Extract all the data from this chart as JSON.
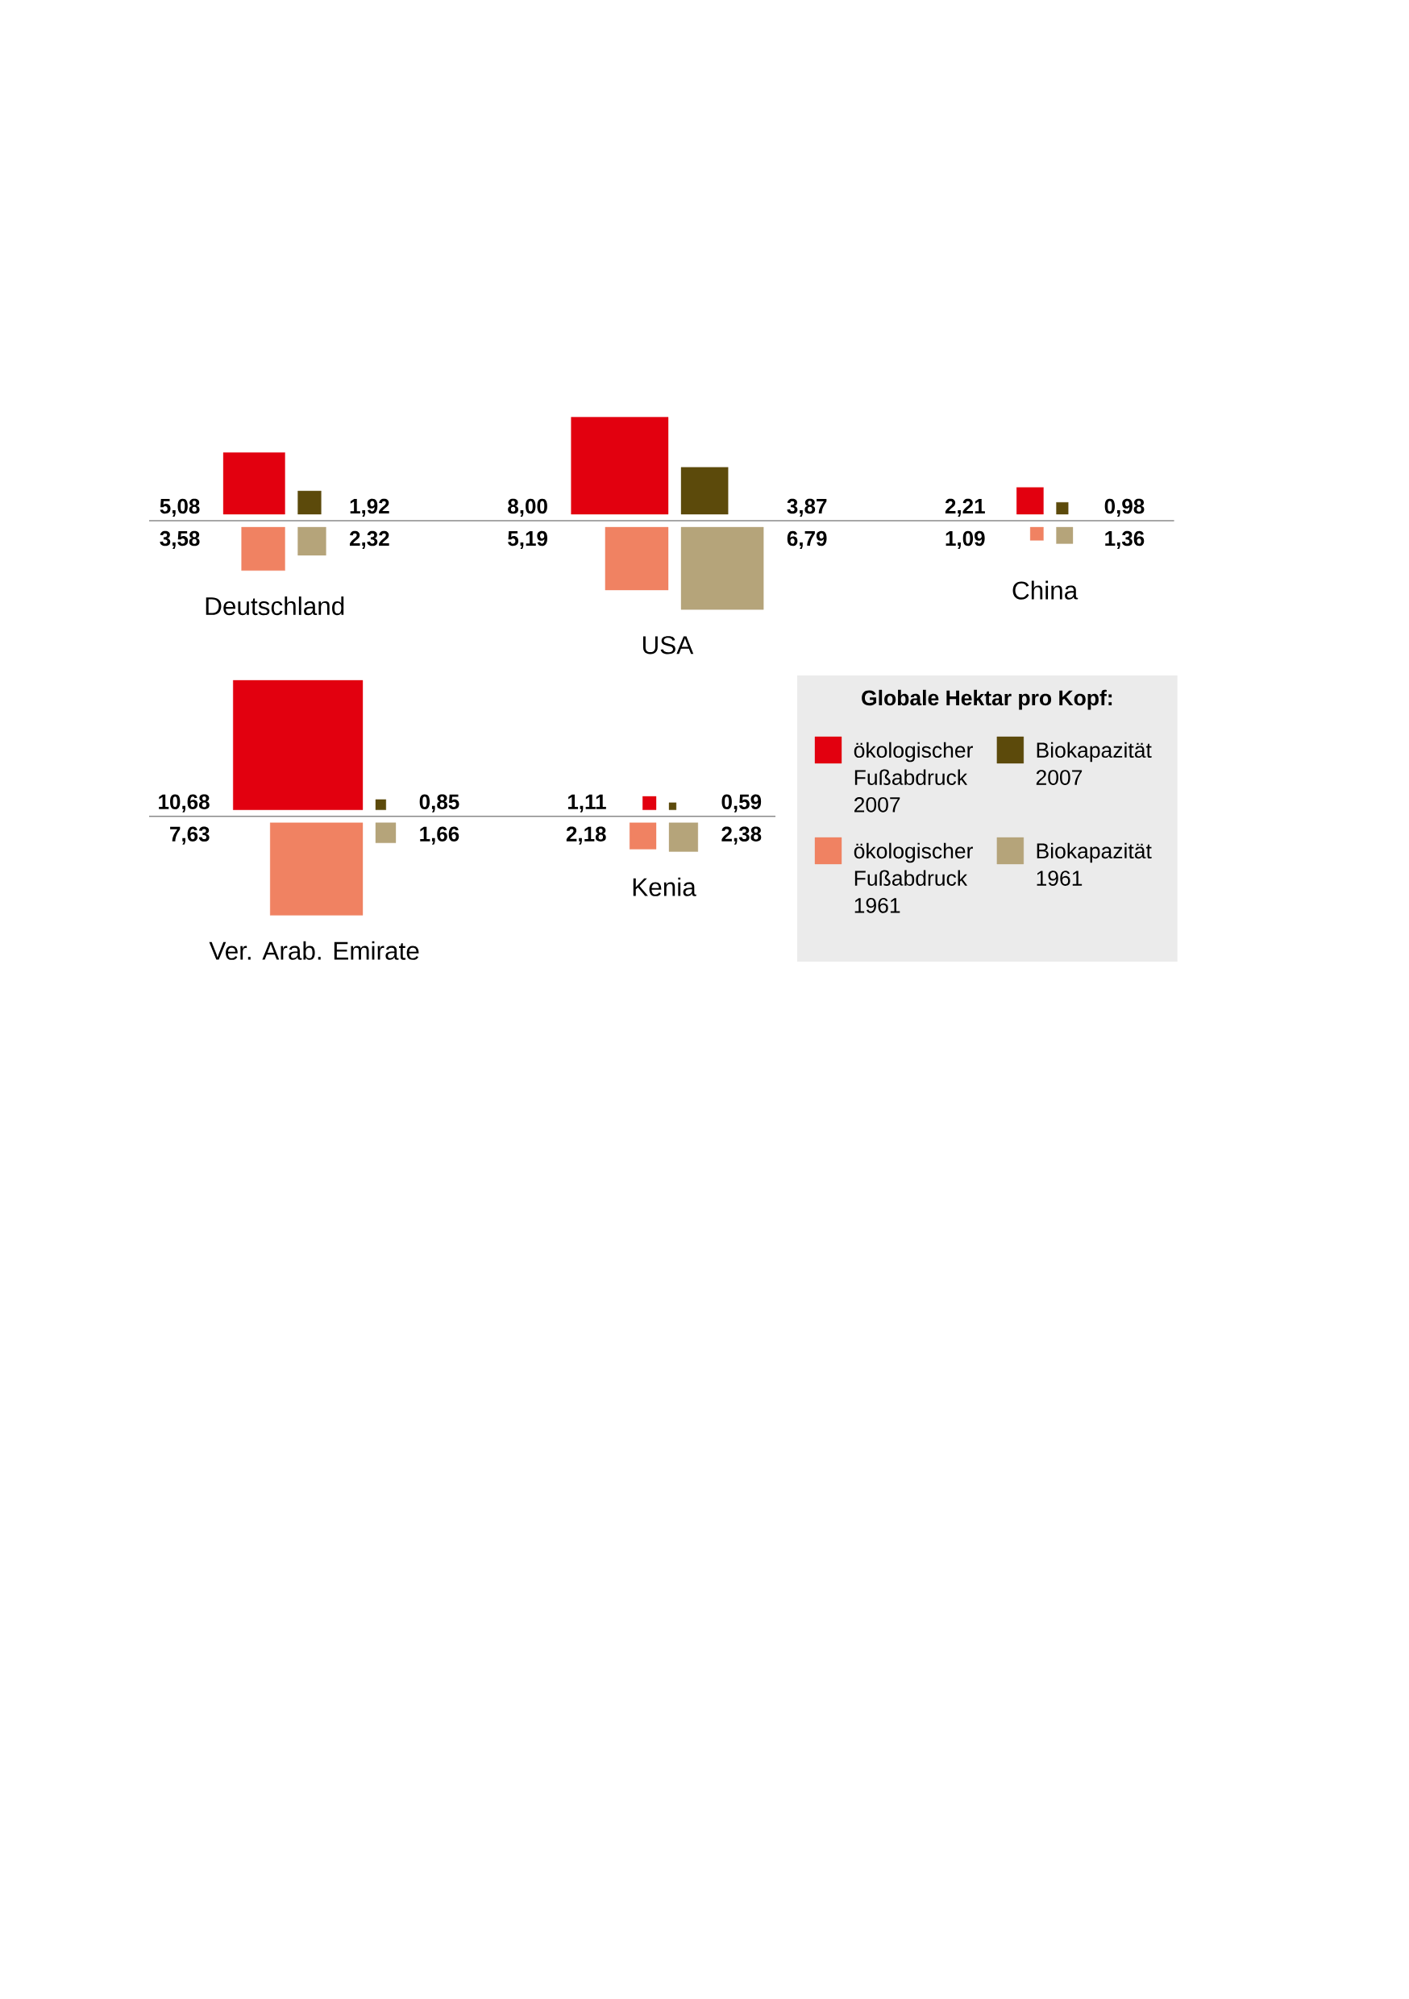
{
  "chart_data": {
    "type": "other",
    "legend_title": "Globale Hektar pro Kopf:",
    "legend": "bottom right",
    "categories": [
      "Deutschland",
      "USA",
      "China",
      "Ver. Arab. Emirate",
      "Kenia"
    ],
    "series": [
      {
        "name": "ökologischer Fußabdruck 2007",
        "color": "#e2000f",
        "values": [
          5.08,
          8.0,
          2.21,
          10.68,
          1.11
        ],
        "value_labels": [
          "5,08",
          "8,00",
          "2,21",
          "10,68",
          "1,11"
        ]
      },
      {
        "name": "Biokapazität 2007",
        "color": "#5c4a0b",
        "values": [
          1.92,
          3.87,
          0.98,
          0.85,
          0.59
        ],
        "value_labels": [
          "1,92",
          "3,87",
          "0,98",
          "0,85",
          "0,59"
        ]
      },
      {
        "name": "ökologischer Fußabdruck 1961",
        "color": "#f08262",
        "values": [
          3.58,
          5.19,
          1.09,
          7.63,
          2.18
        ],
        "value_labels": [
          "3,58",
          "5,19",
          "1,09",
          "7,63",
          "2,18"
        ]
      },
      {
        "name": "Biokapazität 1961",
        "color": "#b5a47a",
        "values": [
          2.32,
          6.79,
          1.36,
          1.66,
          2.38
        ],
        "value_labels": [
          "2,32",
          "6,79",
          "1,36",
          "1,66",
          "2,38"
        ]
      }
    ]
  }
}
